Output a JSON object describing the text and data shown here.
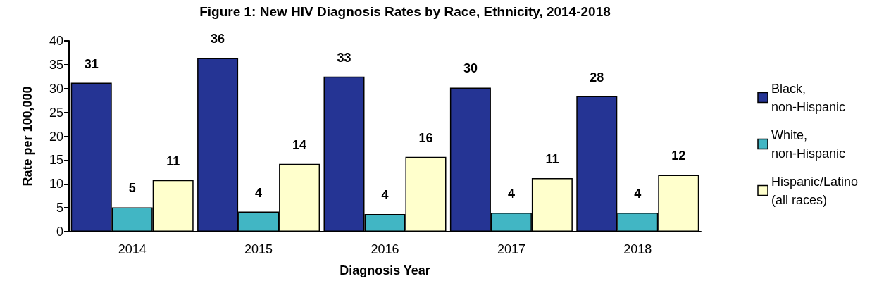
{
  "chart_data": {
    "type": "bar",
    "title": "Figure 1: New HIV Diagnosis Rates by Race, Ethnicity, 2014-2018",
    "xlabel": "Diagnosis Year",
    "ylabel": "Rate per 100,000",
    "categories": [
      "2014",
      "2015",
      "2016",
      "2017",
      "2018"
    ],
    "series": [
      {
        "name": "Black, non-Hispanic",
        "color": "#253494",
        "values": [
          31.2,
          36.4,
          32.5,
          30.2,
          28.4
        ],
        "value_labels": [
          "31",
          "36",
          "33",
          "30",
          "28"
        ]
      },
      {
        "name": "White, non-Hispanic",
        "color": "#41b6c4",
        "values": [
          5.1,
          4.2,
          3.7,
          4.0,
          4.0
        ],
        "value_labels": [
          "5",
          "4",
          "4",
          "4",
          "4"
        ]
      },
      {
        "name": "Hispanic/Latino (all races)",
        "color": "#ffffcc",
        "values": [
          10.8,
          14.2,
          15.7,
          11.2,
          11.9
        ],
        "value_labels": [
          "11",
          "14",
          "16",
          "11",
          "12"
        ]
      }
    ],
    "ylim": [
      0,
      40
    ],
    "yticks": [
      0,
      5,
      10,
      15,
      20,
      25,
      30,
      35,
      40
    ],
    "grid": false,
    "legend": "right"
  }
}
